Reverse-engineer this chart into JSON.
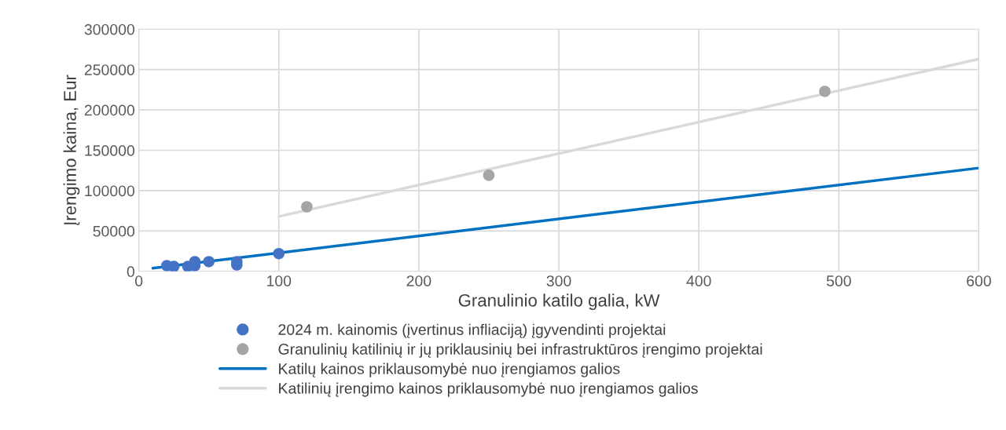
{
  "chart_data": {
    "type": "scatter",
    "xlabel": "Granulinio katilo galia, kW",
    "ylabel": "Įrengimo kaina, Eur",
    "xlim": [
      0,
      600
    ],
    "xticks": [
      0,
      100,
      200,
      300,
      400,
      500,
      600
    ],
    "ylim": [
      0,
      300000
    ],
    "yticks": [
      0,
      50000,
      100000,
      150000,
      200000,
      250000,
      300000
    ],
    "grid": true,
    "legend": "bottom",
    "series": [
      {
        "name": "2024 m. kainomis (įvertinus infliaciją) įgyvendinti projektai",
        "marker": "circle",
        "color": "#4472c4",
        "x": [
          20,
          25,
          35,
          40,
          40,
          50,
          70,
          70,
          100
        ],
        "values": [
          7000,
          6000,
          6000,
          12000,
          7000,
          12000,
          12000,
          8000,
          22000
        ]
      },
      {
        "name": "Granulinių katilinių ir jų priklausinių bei infrastruktūros įrengimo projektai",
        "marker": "circle",
        "color": "#a5a5a5",
        "x": [
          120,
          250,
          490
        ],
        "values": [
          80000,
          119000,
          223000
        ]
      },
      {
        "name": "Katilų kainos priklausomybė nuo įrengiamos galios",
        "type": "line",
        "marker": "none",
        "color": "#0070c0",
        "x": [
          10,
          600
        ],
        "values": [
          4000,
          128000
        ]
      },
      {
        "name": "Katilinių įrengimo kainos priklausomybė nuo įrengiamos galios",
        "type": "line",
        "marker": "none",
        "color": "#d9d9d9",
        "x": [
          100,
          600
        ],
        "values": [
          68000,
          263000
        ]
      }
    ]
  }
}
